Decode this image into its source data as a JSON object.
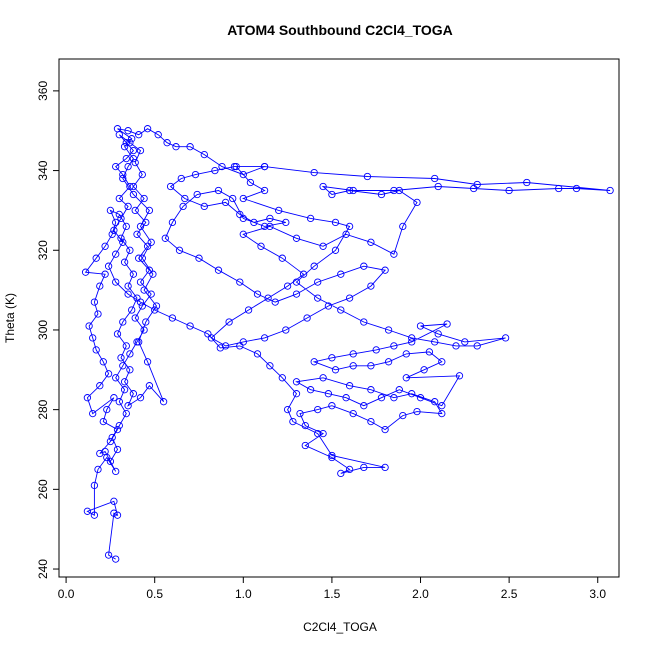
{
  "chart_data": {
    "type": "scatter",
    "title": "ATOM4 Southbound C2Cl4_TOGA",
    "xlabel": "C2Cl4_TOGA",
    "ylabel": "Theta (K)",
    "xlim": [
      -0.04,
      3.12
    ],
    "ylim": [
      238,
      368
    ],
    "x_ticks": [
      0.0,
      0.5,
      1.0,
      1.5,
      2.0,
      2.5,
      3.0
    ],
    "x_tick_labels": [
      "0.0",
      "0.5",
      "1.0",
      "1.5",
      "2.0",
      "2.5",
      "3.0"
    ],
    "y_ticks": [
      240,
      260,
      280,
      300,
      320,
      340,
      360
    ],
    "y_tick_labels": [
      "240",
      "260",
      "280",
      "300",
      "320",
      "340",
      "360"
    ],
    "grid": false,
    "markers": "open-circles-connected-by-lines",
    "color": "#0000ff",
    "series": [
      {
        "points": [
          [
            0.28,
            242.5
          ],
          [
            0.24,
            243.5
          ],
          [
            0.27,
            254
          ],
          [
            0.29,
            253.5
          ],
          [
            0.27,
            257
          ],
          [
            0.12,
            254.5
          ],
          [
            0.16,
            253.5
          ],
          [
            0.16,
            261
          ],
          [
            0.18,
            265
          ],
          [
            0.23,
            268
          ],
          [
            0.28,
            264.5
          ],
          [
            0.22,
            269.5
          ],
          [
            0.19,
            269
          ],
          [
            0.25,
            272
          ],
          [
            0.29,
            275
          ],
          [
            0.21,
            277
          ],
          [
            0.23,
            280
          ],
          [
            0.27,
            283
          ],
          [
            0.15,
            279
          ],
          [
            0.12,
            283
          ],
          [
            0.19,
            286
          ],
          [
            0.24,
            289
          ],
          [
            0.21,
            292
          ],
          [
            0.17,
            295
          ],
          [
            0.15,
            298
          ],
          [
            0.13,
            301
          ],
          [
            0.18,
            304
          ],
          [
            0.16,
            307
          ],
          [
            0.19,
            311
          ],
          [
            0.22,
            314
          ],
          [
            0.11,
            314.5
          ],
          [
            0.17,
            318
          ],
          [
            0.22,
            321
          ],
          [
            0.26,
            324
          ],
          [
            0.28,
            327
          ],
          [
            0.25,
            330
          ],
          [
            0.3,
            329
          ],
          [
            0.34,
            326
          ],
          [
            0.31,
            323
          ],
          [
            0.36,
            320
          ],
          [
            0.33,
            317
          ],
          [
            0.38,
            314
          ],
          [
            0.35,
            311
          ],
          [
            0.4,
            308
          ],
          [
            0.37,
            305
          ],
          [
            0.32,
            302
          ],
          [
            0.29,
            299
          ],
          [
            0.34,
            296
          ],
          [
            0.31,
            293
          ],
          [
            0.36,
            290
          ],
          [
            0.33,
            287
          ],
          [
            0.38,
            284
          ],
          [
            0.35,
            281
          ],
          [
            0.42,
            283
          ],
          [
            0.47,
            286
          ],
          [
            0.55,
            282
          ],
          [
            0.46,
            292
          ],
          [
            0.41,
            297
          ],
          [
            0.45,
            302
          ],
          [
            0.51,
            306
          ],
          [
            0.44,
            310
          ],
          [
            0.49,
            314
          ],
          [
            0.43,
            318
          ],
          [
            0.48,
            322
          ],
          [
            0.42,
            326
          ],
          [
            0.47,
            330
          ],
          [
            0.38,
            334
          ],
          [
            0.32,
            338
          ],
          [
            0.35,
            341
          ],
          [
            0.38,
            343
          ],
          [
            0.33,
            346
          ],
          [
            0.37,
            348
          ],
          [
            0.29,
            350.5
          ],
          [
            0.35,
            350
          ],
          [
            0.41,
            349
          ],
          [
            0.46,
            350.5
          ],
          [
            0.52,
            349
          ],
          [
            0.57,
            347
          ],
          [
            0.62,
            346
          ],
          [
            0.7,
            346
          ],
          [
            0.78,
            344
          ],
          [
            0.88,
            341
          ],
          [
            1.0,
            339
          ],
          [
            1.12,
            341
          ],
          [
            0.95,
            341
          ],
          [
            0.84,
            340
          ],
          [
            0.73,
            339
          ],
          [
            0.65,
            338
          ],
          [
            0.59,
            336
          ],
          [
            0.67,
            333
          ],
          [
            0.78,
            331
          ],
          [
            0.9,
            332
          ],
          [
            0.98,
            329
          ],
          [
            1.06,
            327
          ],
          [
            1.15,
            328
          ],
          [
            1.24,
            327
          ],
          [
            1.12,
            326
          ],
          [
            1.0,
            328
          ],
          [
            0.94,
            333
          ],
          [
            0.86,
            335
          ],
          [
            0.74,
            334
          ],
          [
            0.66,
            331
          ],
          [
            0.6,
            327
          ],
          [
            0.56,
            323
          ],
          [
            0.64,
            320
          ],
          [
            0.75,
            318
          ],
          [
            0.86,
            315
          ],
          [
            0.98,
            312
          ],
          [
            1.08,
            309
          ],
          [
            1.18,
            307
          ],
          [
            1.3,
            309
          ],
          [
            1.42,
            312
          ],
          [
            1.55,
            314
          ],
          [
            1.68,
            316
          ],
          [
            1.8,
            315
          ],
          [
            1.72,
            311
          ],
          [
            1.6,
            308
          ],
          [
            1.48,
            306
          ],
          [
            1.36,
            303
          ],
          [
            1.24,
            300
          ],
          [
            1.12,
            298
          ],
          [
            1.0,
            297
          ],
          [
            0.9,
            296
          ],
          [
            0.82,
            298
          ],
          [
            0.92,
            302
          ],
          [
            1.03,
            305
          ],
          [
            1.14,
            308
          ],
          [
            1.25,
            311
          ],
          [
            1.34,
            314
          ],
          [
            1.22,
            318
          ],
          [
            1.1,
            321
          ],
          [
            1.0,
            324
          ],
          [
            1.15,
            326
          ],
          [
            1.3,
            323
          ],
          [
            1.45,
            321
          ],
          [
            1.58,
            324
          ],
          [
            1.72,
            322
          ],
          [
            1.85,
            319
          ],
          [
            1.9,
            326
          ],
          [
            1.98,
            332
          ],
          [
            1.88,
            335
          ],
          [
            1.78,
            334
          ],
          [
            1.6,
            335
          ],
          [
            1.5,
            334
          ],
          [
            1.45,
            336
          ],
          [
            1.62,
            335
          ],
          [
            1.85,
            335
          ],
          [
            2.1,
            336
          ],
          [
            2.3,
            335.5
          ],
          [
            2.5,
            335
          ],
          [
            2.78,
            335.5
          ],
          [
            2.88,
            335.5
          ],
          [
            3.07,
            335
          ],
          [
            2.6,
            337
          ],
          [
            2.32,
            336.5
          ],
          [
            2.08,
            338
          ],
          [
            1.7,
            338.5
          ],
          [
            1.4,
            339.5
          ],
          [
            1.12,
            341
          ],
          [
            0.96,
            341
          ],
          [
            1.04,
            337
          ],
          [
            1.12,
            335
          ],
          [
            1.0,
            333
          ],
          [
            1.2,
            330
          ],
          [
            1.38,
            328
          ],
          [
            1.52,
            327
          ],
          [
            1.6,
            326
          ],
          [
            1.52,
            320
          ],
          [
            1.4,
            316
          ],
          [
            1.3,
            312
          ],
          [
            1.42,
            308
          ],
          [
            1.55,
            305
          ],
          [
            1.68,
            302
          ],
          [
            1.82,
            300
          ],
          [
            1.95,
            298
          ],
          [
            2.08,
            297
          ],
          [
            2.2,
            296
          ],
          [
            2.32,
            296
          ],
          [
            2.48,
            298
          ],
          [
            2.25,
            297
          ],
          [
            2.1,
            299
          ],
          [
            2.0,
            301
          ],
          [
            2.15,
            301.5
          ],
          [
            1.95,
            297
          ],
          [
            1.85,
            296
          ],
          [
            1.75,
            295
          ],
          [
            1.62,
            294
          ],
          [
            1.5,
            293
          ],
          [
            1.4,
            292
          ],
          [
            1.52,
            290
          ],
          [
            1.62,
            291
          ],
          [
            1.72,
            291
          ],
          [
            1.82,
            292
          ],
          [
            1.92,
            294
          ],
          [
            2.05,
            294.5
          ],
          [
            2.12,
            292
          ],
          [
            2.02,
            290
          ],
          [
            1.92,
            288
          ],
          [
            2.22,
            288.5
          ],
          [
            2.12,
            281
          ],
          [
            2.0,
            283
          ],
          [
            1.88,
            285
          ],
          [
            1.78,
            283
          ],
          [
            1.68,
            281
          ],
          [
            1.58,
            283
          ],
          [
            1.48,
            284
          ],
          [
            1.38,
            285
          ],
          [
            1.3,
            287
          ],
          [
            1.45,
            288
          ],
          [
            1.6,
            286
          ],
          [
            1.72,
            285
          ],
          [
            1.85,
            283
          ],
          [
            1.95,
            284
          ],
          [
            2.08,
            282
          ],
          [
            2.12,
            279
          ],
          [
            1.98,
            279.5
          ],
          [
            1.9,
            278.5
          ],
          [
            1.8,
            275
          ],
          [
            1.72,
            277
          ],
          [
            1.62,
            279
          ],
          [
            1.5,
            281
          ],
          [
            1.42,
            280
          ],
          [
            1.32,
            279
          ],
          [
            1.35,
            276
          ],
          [
            1.45,
            274
          ],
          [
            1.35,
            271
          ],
          [
            1.5,
            268
          ],
          [
            1.6,
            265
          ],
          [
            1.55,
            264
          ],
          [
            1.68,
            265.5
          ],
          [
            1.8,
            265.5
          ],
          [
            1.5,
            268.5
          ],
          [
            1.42,
            274
          ],
          [
            1.28,
            277
          ],
          [
            1.25,
            280
          ],
          [
            1.3,
            284
          ],
          [
            1.22,
            288
          ],
          [
            1.15,
            291
          ],
          [
            1.08,
            294
          ],
          [
            0.98,
            296
          ],
          [
            0.87,
            295.5
          ],
          [
            0.8,
            299
          ],
          [
            0.7,
            301
          ],
          [
            0.6,
            303
          ],
          [
            0.5,
            305
          ],
          [
            0.42,
            307
          ],
          [
            0.35,
            309
          ],
          [
            0.28,
            312
          ],
          [
            0.24,
            316
          ],
          [
            0.28,
            319
          ],
          [
            0.32,
            322
          ],
          [
            0.27,
            325
          ],
          [
            0.31,
            328
          ],
          [
            0.35,
            331
          ],
          [
            0.3,
            333
          ],
          [
            0.36,
            336
          ],
          [
            0.32,
            339
          ],
          [
            0.28,
            341
          ],
          [
            0.34,
            343
          ],
          [
            0.38,
            345
          ],
          [
            0.34,
            347
          ],
          [
            0.3,
            349
          ],
          [
            0.36,
            347
          ],
          [
            0.42,
            345
          ],
          [
            0.39,
            342
          ],
          [
            0.43,
            339
          ],
          [
            0.38,
            336
          ],
          [
            0.44,
            333
          ],
          [
            0.39,
            330
          ],
          [
            0.45,
            327
          ],
          [
            0.4,
            324
          ],
          [
            0.46,
            321
          ],
          [
            0.41,
            318
          ],
          [
            0.47,
            315
          ],
          [
            0.42,
            312
          ],
          [
            0.48,
            309
          ],
          [
            0.43,
            306
          ],
          [
            0.39,
            303
          ],
          [
            0.44,
            300
          ],
          [
            0.4,
            297
          ],
          [
            0.36,
            294
          ],
          [
            0.32,
            291
          ],
          [
            0.28,
            288
          ],
          [
            0.33,
            285
          ],
          [
            0.3,
            282
          ],
          [
            0.34,
            279
          ],
          [
            0.3,
            276
          ],
          [
            0.26,
            273
          ],
          [
            0.29,
            270
          ],
          [
            0.25,
            267
          ]
        ]
      }
    ]
  }
}
